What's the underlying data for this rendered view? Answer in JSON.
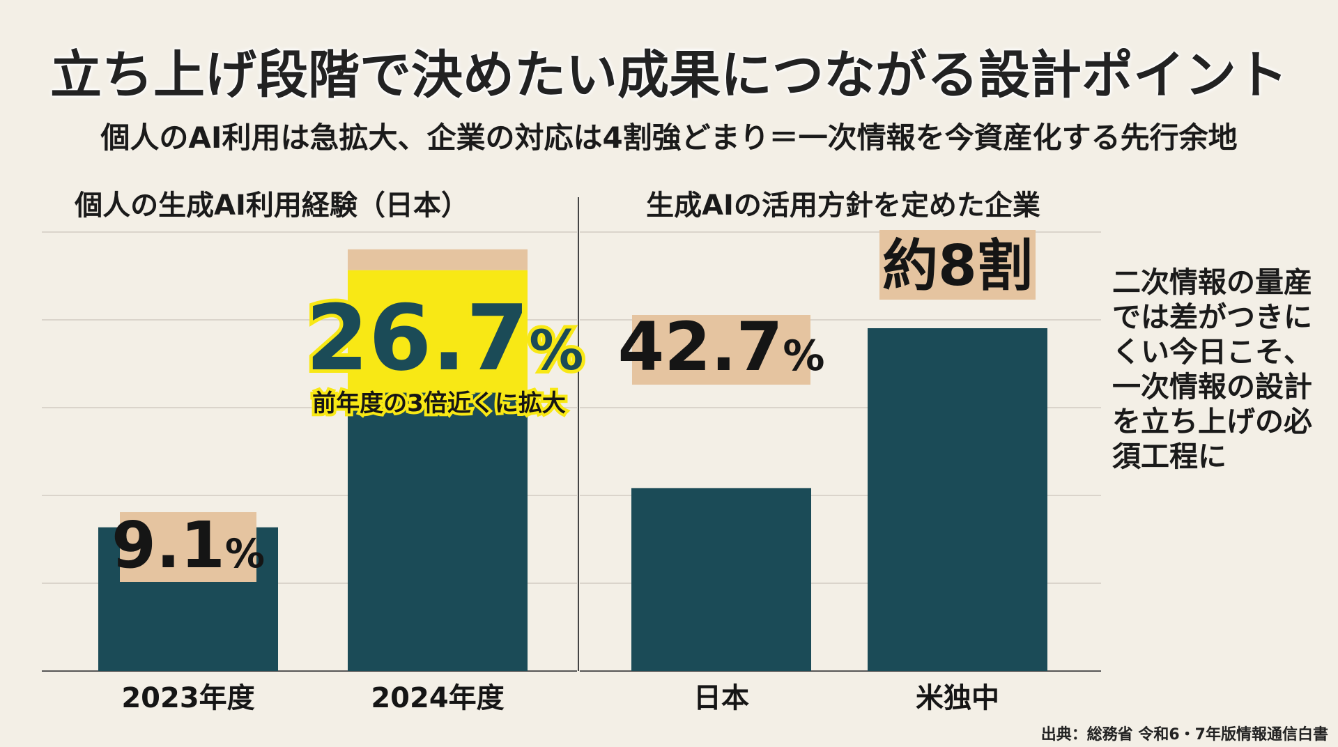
{
  "title": "立ち上げ段階で決めたい成果につながる設計ポイント",
  "subtitle": "個人のAI利用は急拡大、企業の対応は4割強どまり＝一次情報を今資産化する先行余地",
  "side_note": "二次情報の量産では差がつきにくい今日こそ、一次情報の設計を立ち上げの必須工程に",
  "source": "出典：総務省 令和6・7年版情報通信白書",
  "colors": {
    "bar": "#1b4b57",
    "label_bg": "#e5c4a0",
    "highlight": "#f8e815",
    "background": "#f3efe6"
  },
  "chart_data": [
    {
      "type": "bar",
      "title": "個人の生成AI利用経験（日本）",
      "categories": [
        "2023年度",
        "2024年度"
      ],
      "values": [
        9.1,
        26.7
      ],
      "value_labels": [
        "9.1%",
        "26.7%"
      ],
      "annotation": "前年度の3倍近くに拡大",
      "grid": true
    },
    {
      "type": "bar",
      "title": "生成AIの活用方針を定めた企業",
      "categories": [
        "日本",
        "米独中"
      ],
      "values": [
        42.7,
        80
      ],
      "value_labels": [
        "42.7%",
        "約8割"
      ],
      "grid": true
    }
  ]
}
